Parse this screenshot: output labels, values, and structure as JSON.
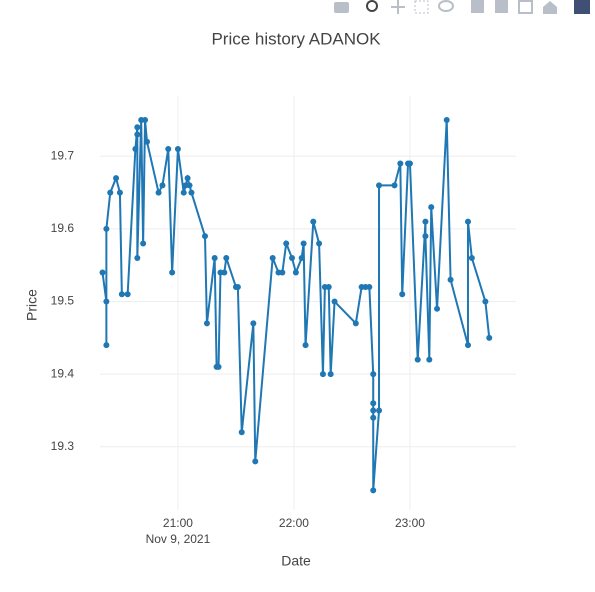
{
  "chart_data": {
    "type": "line",
    "title": "Price history ADANOK",
    "x_title": "Date",
    "y_title": "Price",
    "x_date_label": "Nov 9, 2021",
    "x": [
      "2021-11-09 20:21",
      "2021-11-09 20:23",
      "2021-11-09 20:23",
      "2021-11-09 20:23",
      "2021-11-09 20:25",
      "2021-11-09 20:28",
      "2021-11-09 20:30",
      "2021-11-09 20:31",
      "2021-11-09 20:34",
      "2021-11-09 20:38",
      "2021-11-09 20:39",
      "2021-11-09 20:39",
      "2021-11-09 20:39",
      "2021-11-09 20:41",
      "2021-11-09 20:42",
      "2021-11-09 20:43",
      "2021-11-09 20:44",
      "2021-11-09 20:50",
      "2021-11-09 20:52",
      "2021-11-09 20:55",
      "2021-11-09 20:57",
      "2021-11-09 21:00",
      "2021-11-09 21:03",
      "2021-11-09 21:04",
      "2021-11-09 21:05",
      "2021-11-09 21:06",
      "2021-11-09 21:07",
      "2021-11-09 21:14",
      "2021-11-09 21:15",
      "2021-11-09 21:19",
      "2021-11-09 21:20",
      "2021-11-09 21:21",
      "2021-11-09 21:22",
      "2021-11-09 21:24",
      "2021-11-09 21:25",
      "2021-11-09 21:30",
      "2021-11-09 21:31",
      "2021-11-09 21:33",
      "2021-11-09 21:39",
      "2021-11-09 21:40",
      "2021-11-09 21:49",
      "2021-11-09 21:52",
      "2021-11-09 21:54",
      "2021-11-09 21:56",
      "2021-11-09 21:59",
      "2021-11-09 22:01",
      "2021-11-09 22:04",
      "2021-11-09 22:05",
      "2021-11-09 22:06",
      "2021-11-09 22:10",
      "2021-11-09 22:13",
      "2021-11-09 22:15",
      "2021-11-09 22:16",
      "2021-11-09 22:18",
      "2021-11-09 22:19",
      "2021-11-09 22:21",
      "2021-11-09 22:32",
      "2021-11-09 22:35",
      "2021-11-09 22:37",
      "2021-11-09 22:39",
      "2021-11-09 22:41",
      "2021-11-09 22:41",
      "2021-11-09 22:41",
      "2021-11-09 22:41",
      "2021-11-09 22:41",
      "2021-11-09 22:44",
      "2021-11-09 22:44",
      "2021-11-09 22:52",
      "2021-11-09 22:55",
      "2021-11-09 22:56",
      "2021-11-09 22:59",
      "2021-11-09 23:00",
      "2021-11-09 23:04",
      "2021-11-09 23:08",
      "2021-11-09 23:08",
      "2021-11-09 23:10",
      "2021-11-09 23:11",
      "2021-11-09 23:14",
      "2021-11-09 23:19",
      "2021-11-09 23:21",
      "2021-11-09 23:30",
      "2021-11-09 23:30",
      "2021-11-09 23:32",
      "2021-11-09 23:39",
      "2021-11-09 23:41"
    ],
    "series": [
      {
        "name": "ADANOK",
        "color": "#1f77b4",
        "values": [
          19.54,
          19.5,
          19.44,
          19.6,
          19.65,
          19.67,
          19.65,
          19.51,
          19.51,
          19.71,
          19.74,
          19.73,
          19.56,
          19.75,
          19.58,
          19.75,
          19.72,
          19.65,
          19.66,
          19.71,
          19.54,
          19.71,
          19.65,
          19.66,
          19.67,
          19.66,
          19.65,
          19.59,
          19.47,
          19.56,
          19.41,
          19.41,
          19.54,
          19.54,
          19.56,
          19.52,
          19.52,
          19.32,
          19.47,
          19.28,
          19.56,
          19.54,
          19.54,
          19.58,
          19.56,
          19.54,
          19.56,
          19.58,
          19.44,
          19.61,
          19.58,
          19.4,
          19.52,
          19.52,
          19.4,
          19.5,
          19.47,
          19.52,
          19.52,
          19.52,
          19.4,
          19.36,
          19.34,
          19.35,
          19.24,
          19.35,
          19.66,
          19.66,
          19.69,
          19.51,
          19.69,
          19.69,
          19.42,
          19.61,
          19.59,
          19.42,
          19.63,
          19.49,
          19.75,
          19.53,
          19.44,
          19.61,
          19.56,
          19.5,
          19.45
        ]
      }
    ],
    "xlim": [
      "2021-11-09 20:19:42",
      "2021-11-09 23:54:50"
    ],
    "xticks": [
      {
        "value": "2021-11-09 21:00",
        "label": "21:00"
      },
      {
        "value": "2021-11-09 22:00",
        "label": "22:00"
      },
      {
        "value": "2021-11-09 23:00",
        "label": "23:00"
      }
    ],
    "ylim": [
      19.213,
      19.783
    ],
    "yticks": [
      19.3,
      19.4,
      19.5,
      19.6,
      19.7
    ],
    "grid": true
  }
}
